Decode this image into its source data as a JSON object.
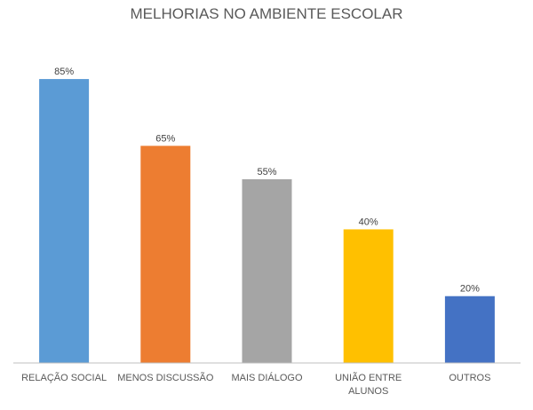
{
  "chart_data": {
    "type": "bar",
    "title": "MELHORIAS NO AMBIENTE ESCOLAR",
    "categories": [
      [
        "RELAÇÃO SOCIAL"
      ],
      [
        "MENOS DISCUSSÃO"
      ],
      [
        "MAIS DIÁLOGO"
      ],
      [
        "UNIÃO ENTRE",
        "ALUNOS"
      ],
      [
        "OUTROS"
      ]
    ],
    "values": [
      85,
      65,
      55,
      40,
      20
    ],
    "data_labels": [
      "85%",
      "65%",
      "55%",
      "40%",
      "20%"
    ],
    "colors": [
      "#5B9BD5",
      "#ED7D31",
      "#A5A5A5",
      "#FFC000",
      "#4472C4"
    ],
    "unit": "%",
    "ylim": [
      0,
      100
    ],
    "grid": false,
    "legend": "none",
    "axis_color": "#BFBFBF"
  }
}
